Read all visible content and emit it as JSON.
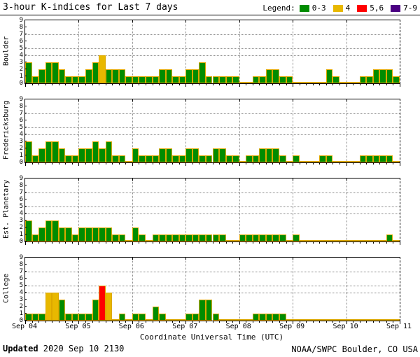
{
  "title": "3-hour K-indices for Last 7 days",
  "legend": {
    "label": "Legend:",
    "items": [
      {
        "label": "0-3",
        "color": "#008C00"
      },
      {
        "label": "4",
        "color": "#E8B800"
      },
      {
        "label": "5,6",
        "color": "#FF0000"
      },
      {
        "label": "7-9",
        "color": "#4B0082"
      }
    ]
  },
  "footer": {
    "updated_label": "Updated",
    "updated_value": " 2020 Sep 10 2130",
    "credit": "NOAA/SWPC Boulder, CO USA"
  },
  "chart_data": {
    "type": "bar",
    "title": "3-hour K-indices for Last 7 days",
    "xlabel": "Coordinate Universal Time (UTC)",
    "x_tick_labels": [
      "Sep 04",
      "Sep 05",
      "Sep 06",
      "Sep 07",
      "Sep 08",
      "Sep 09",
      "Sep 10",
      "Sep 11"
    ],
    "bars_per_day": 8,
    "ylim": [
      0,
      9
    ],
    "y_ticks": [
      0,
      1,
      2,
      3,
      4,
      5,
      6,
      7,
      8,
      9
    ],
    "gridlines_y": [
      4,
      5,
      7
    ],
    "grid": "dotted",
    "legend_position": "top-right",
    "colors": {
      "k_0_3": "#008C00",
      "k_4": "#E8B800",
      "k_5_6": "#FF0000",
      "k_7_9": "#4B0082",
      "bar_outline": "#DCA800",
      "gridline": "#8a8a8a",
      "frame": "#000000"
    },
    "panels": [
      {
        "station": "Boulder",
        "values": [
          3,
          1,
          2,
          3,
          3,
          2,
          1,
          1,
          1,
          2,
          3,
          4,
          2,
          2,
          2,
          1,
          1,
          1,
          1,
          1,
          2,
          2,
          1,
          1,
          2,
          2,
          3,
          1,
          1,
          1,
          1,
          1,
          0,
          0,
          1,
          1,
          2,
          2,
          1,
          1,
          0,
          0,
          0,
          0,
          0,
          2,
          1,
          0,
          0,
          0,
          1,
          1,
          2,
          2,
          2,
          1
        ]
      },
      {
        "station": "Fredericksburg",
        "values": [
          3,
          1,
          2,
          3,
          3,
          2,
          1,
          1,
          2,
          2,
          3,
          2,
          3,
          1,
          1,
          0,
          2,
          1,
          1,
          1,
          2,
          2,
          1,
          1,
          2,
          2,
          1,
          1,
          2,
          2,
          1,
          1,
          0,
          1,
          1,
          2,
          2,
          2,
          1,
          0,
          1,
          0,
          0,
          0,
          1,
          1,
          0,
          0,
          0,
          0,
          1,
          1,
          1,
          1,
          1,
          0
        ]
      },
      {
        "station": "Est. Planetary",
        "values": [
          3,
          1,
          2,
          3,
          3,
          2,
          2,
          1,
          2,
          2,
          2,
          2,
          2,
          1,
          1,
          0,
          2,
          1,
          0,
          1,
          1,
          1,
          1,
          1,
          1,
          1,
          1,
          1,
          1,
          1,
          0,
          0,
          1,
          1,
          1,
          1,
          1,
          1,
          1,
          0,
          1,
          0,
          0,
          0,
          0,
          0,
          0,
          0,
          0,
          0,
          0,
          0,
          0,
          0,
          1,
          0
        ]
      },
      {
        "station": "College",
        "values": [
          1,
          1,
          1,
          4,
          4,
          3,
          1,
          1,
          1,
          1,
          3,
          5,
          4,
          0,
          1,
          0,
          1,
          1,
          0,
          2,
          1,
          0,
          0,
          0,
          1,
          1,
          3,
          3,
          1,
          0,
          0,
          0,
          0,
          0,
          1,
          1,
          1,
          1,
          1,
          0,
          0,
          0,
          0,
          0,
          0,
          0,
          0,
          0,
          0,
          0,
          0,
          0,
          0,
          0,
          0,
          0
        ]
      }
    ]
  }
}
